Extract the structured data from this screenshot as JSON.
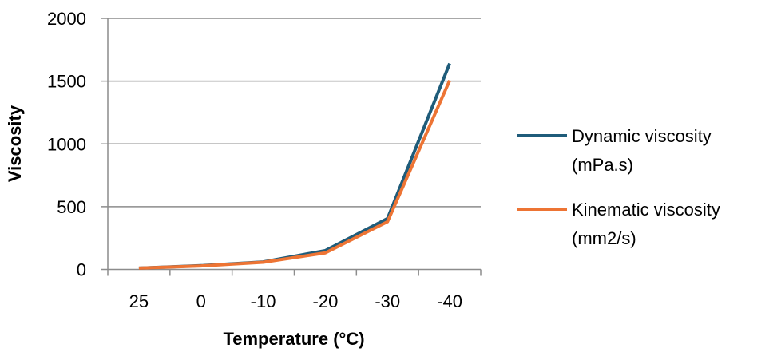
{
  "chart_data": {
    "type": "line",
    "title": "",
    "xlabel": "Temperature (°C)",
    "ylabel": "Viscosity",
    "categories": [
      "25",
      "0",
      "-10",
      "-20",
      "-30",
      "-40"
    ],
    "ylim": [
      0,
      2000
    ],
    "yticks": [
      0,
      500,
      1000,
      1500,
      2000
    ],
    "grid": true,
    "legend": "right",
    "series": [
      {
        "name": "Dynamic viscosity (mPa.s)",
        "legend_lines": [
          "Dynamic viscosity",
          "(mPa.s)"
        ],
        "color": "#1f5c7a",
        "values": [
          10,
          30,
          60,
          150,
          405,
          1640
        ]
      },
      {
        "name": "Kinematic viscosity (mm2/s)",
        "legend_lines": [
          "Kinematic viscosity",
          "(mm2/s)"
        ],
        "color": "#ed7434",
        "values": [
          10,
          28,
          57,
          132,
          380,
          1505
        ]
      }
    ]
  }
}
